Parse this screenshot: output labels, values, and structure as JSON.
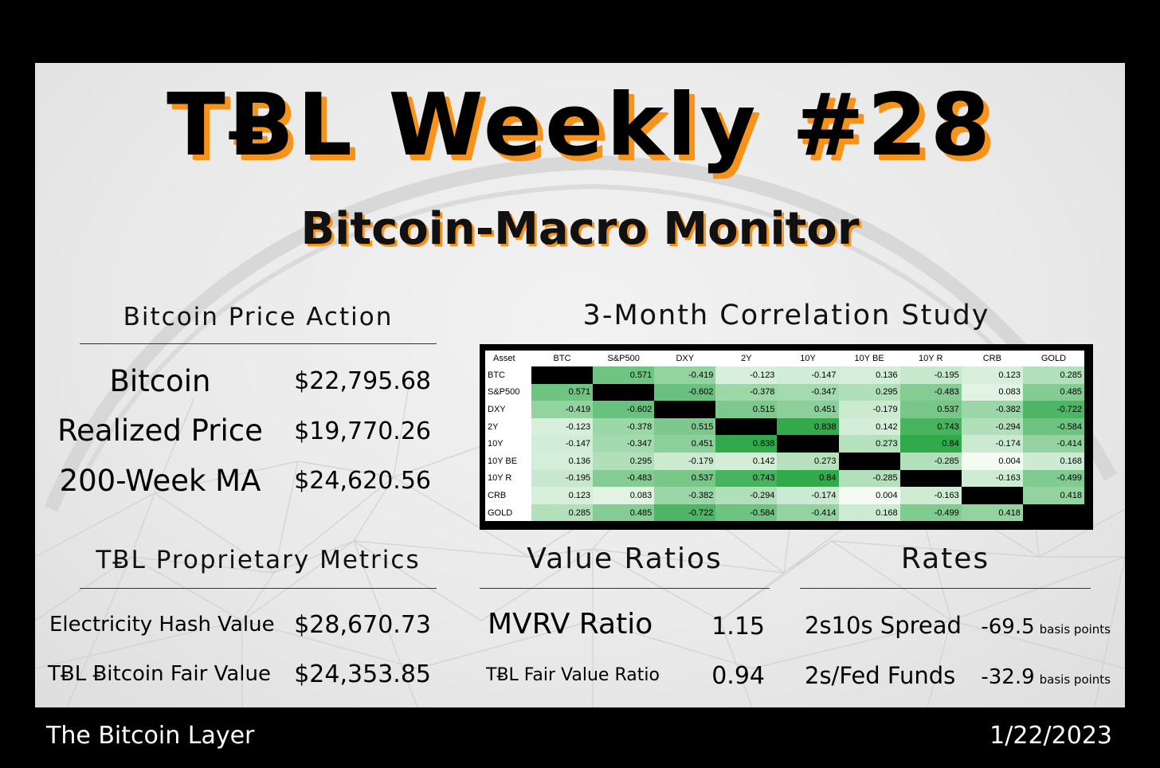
{
  "header": {
    "title": "TɃL Weekly #28",
    "subtitle": "Bitcoin-Macro Monitor"
  },
  "price_action": {
    "heading": "Bitcoin Price Action",
    "rows": [
      {
        "label": "Bitcoin",
        "value": "$22,795.68"
      },
      {
        "label": "Realized Price",
        "value": "$19,770.26"
      },
      {
        "label": "200-Week MA",
        "value": "$24,620.56"
      }
    ]
  },
  "proprietary": {
    "heading": "TɃL Proprietary Metrics",
    "rows": [
      {
        "label": "Electricity Hash Value",
        "value": "$28,670.73"
      },
      {
        "label": "TɃL Ƀitcoin Fair Value",
        "value": "$24,353.85"
      }
    ]
  },
  "correlation": {
    "heading": "3-Month Correlation Study",
    "corner": "Asset",
    "assets": [
      "BTC",
      "S&P500",
      "DXY",
      "2Y",
      "10Y",
      "10Y BE",
      "10Y R",
      "CRB",
      "GOLD"
    ],
    "matrix": [
      [
        "",
        "0.571",
        "-0.419",
        "-0.123",
        "-0.147",
        "0.136",
        "-0.195",
        "0.123",
        "0.285"
      ],
      [
        "0.571",
        "",
        "-0.602",
        "-0.378",
        "-0.347",
        "0.295",
        "-0.483",
        "0.083",
        "0.485"
      ],
      [
        "-0.419",
        "-0.602",
        "",
        "0.515",
        "0.451",
        "-0.179",
        "0.537",
        "-0.382",
        "-0.722"
      ],
      [
        "-0.123",
        "-0.378",
        "0.515",
        "",
        "0.838",
        "0.142",
        "0.743",
        "-0.294",
        "-0.584"
      ],
      [
        "-0.147",
        "-0.347",
        "0.451",
        "0.838",
        "",
        "0.273",
        "0.84",
        "-0.174",
        "-0.414"
      ],
      [
        "0.136",
        "0.295",
        "-0.179",
        "0.142",
        "0.273",
        "",
        "-0.285",
        "0.004",
        "0.168"
      ],
      [
        "-0.195",
        "-0.483",
        "0.537",
        "0.743",
        "0.84",
        "-0.285",
        "",
        "-0.163",
        "-0.499"
      ],
      [
        "0.123",
        "0.083",
        "-0.382",
        "-0.294",
        "-0.174",
        "0.004",
        "-0.163",
        "",
        "0.418"
      ],
      [
        "0.285",
        "0.485",
        "-0.722",
        "-0.584",
        "-0.414",
        "0.168",
        "-0.499",
        "0.418",
        ""
      ]
    ]
  },
  "value_ratios": {
    "heading": "Value Ratios",
    "rows": [
      {
        "label": "MVRV Ratio",
        "value": "1.15"
      },
      {
        "label": "TɃL Fair Value Ratio",
        "value": "0.94"
      }
    ]
  },
  "rates": {
    "heading": "Rates",
    "rows": [
      {
        "label": "2s10s Spread",
        "value": "-69.5",
        "unit": "basis points"
      },
      {
        "label": "2s/Fed Funds",
        "value": "-32.9",
        "unit": "basis points"
      }
    ]
  },
  "footer": {
    "brand": "The Bitcoin Layer",
    "date": "1/22/2023"
  },
  "colors": {
    "accent": "#f7931a",
    "diagonal": "#000000",
    "heat_low": "#f4fbf4",
    "heat_high": "#2fa94a"
  }
}
